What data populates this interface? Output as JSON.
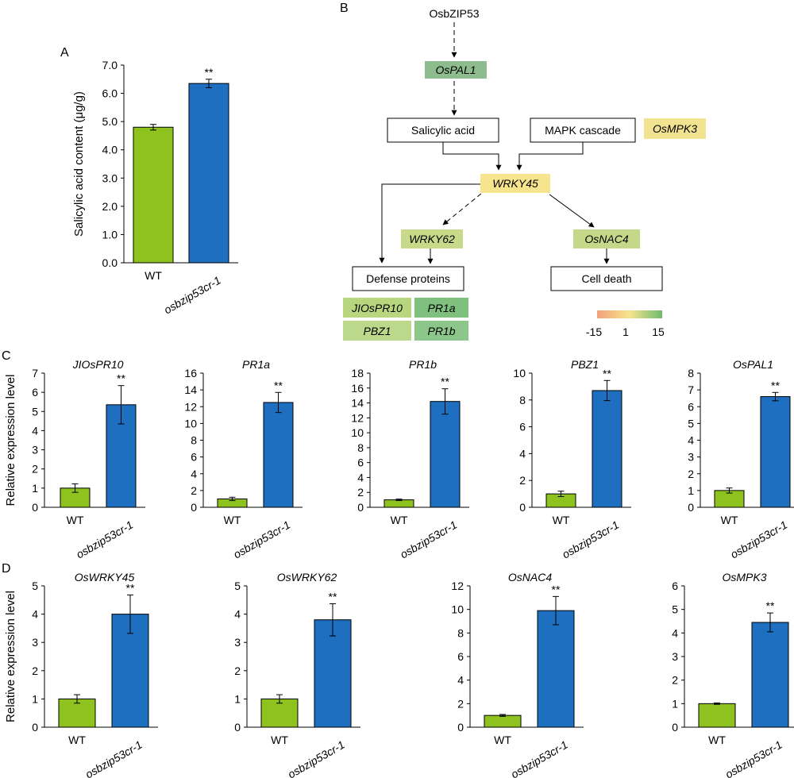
{
  "panels": {
    "A": "A",
    "B": "B",
    "C": "C",
    "D": "D"
  },
  "colors": {
    "wt": "#8dc21f",
    "mutant": "#1e6fbf"
  },
  "chart_data": [
    {
      "id": "A",
      "type": "bar",
      "ylabel": "Salicylic acid content (μg/g)",
      "categories": [
        "WT",
        "osbzip53cr-1"
      ],
      "values": [
        4.8,
        6.35
      ],
      "errors": [
        0.1,
        0.15
      ],
      "ylim": [
        0,
        7
      ],
      "ticks": [
        "0.0",
        "1.0",
        "2.0",
        "3.0",
        "4.0",
        "5.0",
        "6.0",
        "7.0"
      ],
      "sig": "**"
    },
    {
      "id": "C1",
      "type": "bar",
      "title": "JIOsPR10",
      "ylabel": "Relative expression level",
      "categories": [
        "WT",
        "osbzip53cr-1"
      ],
      "values": [
        1.0,
        5.35
      ],
      "errors": [
        0.22,
        1.0
      ],
      "ylim": [
        0,
        7
      ],
      "ticks": [
        "0",
        "1",
        "2",
        "3",
        "4",
        "5",
        "6",
        "7"
      ],
      "sig": "**"
    },
    {
      "id": "C2",
      "type": "bar",
      "title": "PR1a",
      "categories": [
        "WT",
        "osbzip53cr-1"
      ],
      "values": [
        1.0,
        12.5
      ],
      "errors": [
        0.2,
        1.2
      ],
      "ylim": [
        0,
        16
      ],
      "ticks": [
        "0",
        "2",
        "4",
        "6",
        "8",
        "10",
        "12",
        "14",
        "16"
      ],
      "sig": "**"
    },
    {
      "id": "C3",
      "type": "bar",
      "title": "PR1b",
      "categories": [
        "WT",
        "osbzip53cr-1"
      ],
      "values": [
        1.0,
        14.2
      ],
      "errors": [
        0.1,
        1.7
      ],
      "ylim": [
        0,
        18
      ],
      "ticks": [
        "0",
        "2",
        "4",
        "6",
        "8",
        "10",
        "12",
        "14",
        "16",
        "18"
      ],
      "sig": "**"
    },
    {
      "id": "C4",
      "type": "bar",
      "title": "PBZ1",
      "categories": [
        "WT",
        "osbzip53cr-1"
      ],
      "values": [
        1.0,
        8.7
      ],
      "errors": [
        0.2,
        0.75
      ],
      "ylim": [
        0,
        10
      ],
      "ticks": [
        "0",
        "2",
        "4",
        "6",
        "8",
        "10"
      ],
      "sig": "**"
    },
    {
      "id": "C5",
      "type": "bar",
      "title": "OsPAL1",
      "categories": [
        "WT",
        "osbzip53cr-1"
      ],
      "values": [
        1.0,
        6.6
      ],
      "errors": [
        0.15,
        0.25
      ],
      "ylim": [
        0,
        8
      ],
      "ticks": [
        "0",
        "1",
        "2",
        "3",
        "4",
        "5",
        "6",
        "7",
        "8"
      ],
      "sig": "**"
    },
    {
      "id": "D1",
      "type": "bar",
      "title": "OsWRKY45",
      "ylabel": "Relative expression level",
      "categories": [
        "WT",
        "osbzip53cr-1"
      ],
      "values": [
        1.0,
        4.0
      ],
      "errors": [
        0.15,
        0.68
      ],
      "ylim": [
        0,
        5
      ],
      "ticks": [
        "0",
        "1",
        "2",
        "3",
        "4",
        "5"
      ],
      "sig": "**"
    },
    {
      "id": "D2",
      "type": "bar",
      "title": "OsWRKY62",
      "categories": [
        "WT",
        "osbzip53cr-1"
      ],
      "values": [
        1.0,
        3.8
      ],
      "errors": [
        0.15,
        0.57
      ],
      "ylim": [
        0,
        5
      ],
      "ticks": [
        "0",
        "1",
        "2",
        "3",
        "4",
        "5"
      ],
      "sig": "**"
    },
    {
      "id": "D3",
      "type": "bar",
      "title": "OsNAC4",
      "categories": [
        "WT",
        "osbzip53cr-1"
      ],
      "values": [
        1.0,
        9.9
      ],
      "errors": [
        0.08,
        1.2
      ],
      "ylim": [
        0,
        12
      ],
      "ticks": [
        "0",
        "2",
        "4",
        "6",
        "8",
        "10",
        "12"
      ],
      "sig": "**"
    },
    {
      "id": "D4",
      "type": "bar",
      "title": "OsMPK3",
      "categories": [
        "WT",
        "osbzip53cr-1"
      ],
      "values": [
        1.0,
        4.45
      ],
      "errors": [
        0.03,
        0.4
      ],
      "ylim": [
        0,
        6
      ],
      "ticks": [
        "0",
        "1",
        "2",
        "3",
        "4",
        "5",
        "6"
      ],
      "sig": "**"
    }
  ],
  "diagram": {
    "nodes": {
      "osbzip53": "OsbZIP53",
      "ospal1": "OsPAL1",
      "salicylic": "Salicylic acid",
      "mapk": "MAPK cascade",
      "osmpk3": "OsMPK3",
      "wrky45": "WRKY45",
      "wrky62": "WRKY62",
      "osnac4": "OsNAC4",
      "defense": "Defense proteins",
      "celldeath": "Cell death",
      "jiospr10": "JIOsPR10",
      "pr1a": "PR1a",
      "pbz1": "PBZ1",
      "pr1b": "PR1b"
    },
    "scale": {
      "min": "-15",
      "mid": "1",
      "max": "15"
    },
    "node_colors": {
      "ospal1": "#8fbc8f",
      "osmpk3": "#f1e38f",
      "wrky45": "#f6e58d",
      "wrky62": "#c9d98a",
      "osnac4": "#c5d88a",
      "jiospr10": "#b7d67e",
      "pr1a": "#7fc07f",
      "pbz1": "#bcd88a",
      "pr1b": "#8cc68a"
    }
  }
}
